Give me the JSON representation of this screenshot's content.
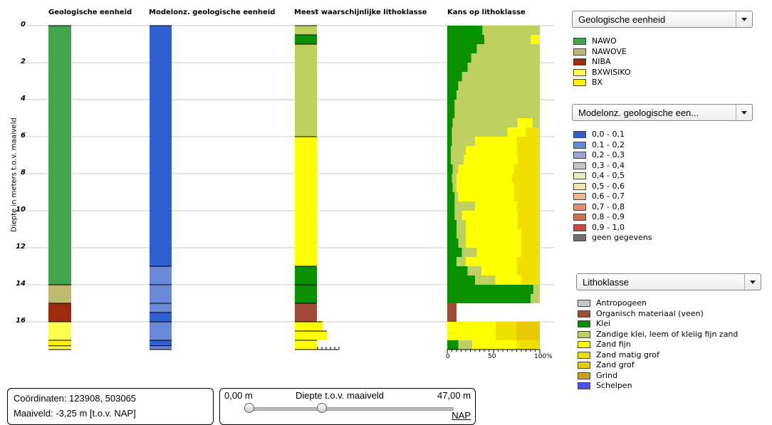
{
  "columns": {
    "geo": "Geologische eenheid",
    "model": "Modelonz. geologische eenheid",
    "litho": "Meest waarschijnlijke lithoklasse",
    "kans": "Kans op lithoklasse"
  },
  "y_axis": {
    "label": "Diepte in meters t.o.v. maaiveld",
    "ticks": [
      "0",
      "2",
      "4",
      "6",
      "8",
      "10",
      "12",
      "14",
      "16"
    ]
  },
  "kans_axis": {
    "ticks": [
      "0",
      "50",
      "100%"
    ]
  },
  "colors": {
    "NAWO": "#41a44e",
    "NAWOVE": "#bdba70",
    "NIBA": "#9d2b0e",
    "BXWISIKO": "#ffff50",
    "BX": "#fff000",
    "m01": "#3060d0",
    "m12": "#6a88d8",
    "m23": "#9aa8d8",
    "m34": "#c4c4cc",
    "m45": "#eeeec0",
    "m56": "#f6e4b0",
    "m67": "#f0b890",
    "m78": "#e09070",
    "m89": "#d07050",
    "m910": "#c84848",
    "mgeen": "#707070",
    "antropogeen": "#c8c8c8",
    "veen": "#a04a3a",
    "klei": "#089000",
    "zandklei": "#c0d060",
    "zandfijn": "#ffff00",
    "zandmatig": "#f0e000",
    "zandgrof": "#e8c800",
    "grind": "#d0a020",
    "schelpen": "#5050f0"
  },
  "geo_legend": {
    "select": "Geologische eenheid",
    "items": [
      {
        "label": "NAWO",
        "color": "#41a44e"
      },
      {
        "label": "NAWOVE",
        "color": "#bdba70"
      },
      {
        "label": "NIBA",
        "color": "#9d2b0e"
      },
      {
        "label": "BXWISIKO",
        "color": "#ffff50"
      },
      {
        "label": "BX",
        "color": "#fff000"
      }
    ]
  },
  "model_legend": {
    "select": "Modelonz. geologische een...",
    "items": [
      {
        "label": "0,0 - 0,1",
        "color": "#3060d0"
      },
      {
        "label": "0,1 - 0,2",
        "color": "#6a88d8"
      },
      {
        "label": "0,2 - 0,3",
        "color": "#9aa8d8"
      },
      {
        "label": "0,3 - 0,4",
        "color": "#c4c4cc"
      },
      {
        "label": "0,4 - 0,5",
        "color": "#eeeec0"
      },
      {
        "label": "0,5 - 0,6",
        "color": "#f6e4b0"
      },
      {
        "label": "0,6 - 0,7",
        "color": "#f0b890"
      },
      {
        "label": "0,7 - 0,8",
        "color": "#e09070"
      },
      {
        "label": "0,8 - 0,9",
        "color": "#d07050"
      },
      {
        "label": "0,9 - 1,0",
        "color": "#c84848"
      },
      {
        "label": "geen gegevens",
        "color": "#707070"
      }
    ]
  },
  "litho_legend": {
    "select": "Lithoklasse",
    "items": [
      {
        "label": "Antropogeen",
        "color": "#c8c8c8"
      },
      {
        "label": "Organisch materiaal (veen)",
        "color": "#a04a3a"
      },
      {
        "label": "Klei",
        "color": "#089000"
      },
      {
        "label": "Zandige klei, leem of kleiig fijn zand",
        "color": "#c0d060"
      },
      {
        "label": "Zand fijn",
        "color": "#ffff00"
      },
      {
        "label": "Zand matig grof",
        "color": "#f0e000"
      },
      {
        "label": "Zand grof",
        "color": "#e8c800"
      },
      {
        "label": "Grind",
        "color": "#d0a020"
      },
      {
        "label": "Schelpen",
        "color": "#5050f0"
      }
    ]
  },
  "geo_column": [
    {
      "from": 0,
      "to": 14.0,
      "unit": "NAWO"
    },
    {
      "from": 14.0,
      "to": 15.0,
      "unit": "NAWOVE"
    },
    {
      "from": 15.0,
      "to": 16.0,
      "unit": "NIBA"
    },
    {
      "from": 16.0,
      "to": 17.0,
      "unit": "BXWISIKO"
    },
    {
      "from": 17.0,
      "to": 17.3,
      "unit": "BX"
    },
    {
      "from": 17.3,
      "to": 17.5,
      "unit": "BXWISIKO"
    }
  ],
  "model_column": [
    {
      "from": 0,
      "to": 13.0,
      "cls": "m01"
    },
    {
      "from": 13.0,
      "to": 14.0,
      "cls": "m12"
    },
    {
      "from": 14.0,
      "to": 15.0,
      "cls": "m12"
    },
    {
      "from": 15.0,
      "to": 15.5,
      "cls": "m12"
    },
    {
      "from": 15.5,
      "to": 16.0,
      "cls": "m01"
    },
    {
      "from": 16.0,
      "to": 17.0,
      "cls": "m12"
    },
    {
      "from": 17.0,
      "to": 17.3,
      "cls": "m01"
    },
    {
      "from": 17.3,
      "to": 17.5,
      "cls": "m12"
    }
  ],
  "litho_column": [
    {
      "from": 0,
      "to": 0.5,
      "cls": "zandklei"
    },
    {
      "from": 0.5,
      "to": 1.0,
      "cls": "klei"
    },
    {
      "from": 1.0,
      "to": 6.0,
      "cls": "zandklei"
    },
    {
      "from": 6.0,
      "to": 13.0,
      "cls": "zandfijn"
    },
    {
      "from": 13.0,
      "to": 14.0,
      "cls": "klei"
    },
    {
      "from": 14.0,
      "to": 15.0,
      "cls": "klei"
    },
    {
      "from": 15.0,
      "to": 16.0,
      "cls": "veen"
    },
    {
      "from": 16.0,
      "to": 16.5,
      "cls": "zandfijn"
    },
    {
      "from": 16.5,
      "to": 17.0,
      "cls": "zandfijn"
    },
    {
      "from": 17.0,
      "to": 17.5,
      "cls": "zandfijn"
    }
  ],
  "kans_rows": [
    {
      "from": 0,
      "to": 0.5,
      "parts": [
        [
          "klei",
          0.38
        ],
        [
          "zandklei",
          0.62
        ]
      ]
    },
    {
      "from": 0.5,
      "to": 1.0,
      "parts": [
        [
          "klei",
          0.4
        ],
        [
          "zandklei",
          0.5
        ],
        [
          "zandfijn",
          0.1
        ]
      ]
    },
    {
      "from": 1.0,
      "to": 1.5,
      "parts": [
        [
          "klei",
          0.32
        ],
        [
          "zandklei",
          0.68
        ]
      ]
    },
    {
      "from": 1.5,
      "to": 2.0,
      "parts": [
        [
          "klei",
          0.26
        ],
        [
          "zandklei",
          0.74
        ]
      ]
    },
    {
      "from": 2.0,
      "to": 2.5,
      "parts": [
        [
          "klei",
          0.22
        ],
        [
          "zandklei",
          0.78
        ]
      ]
    },
    {
      "from": 2.5,
      "to": 3.0,
      "parts": [
        [
          "klei",
          0.16
        ],
        [
          "zandklei",
          0.84
        ]
      ]
    },
    {
      "from": 3.0,
      "to": 3.5,
      "parts": [
        [
          "klei",
          0.12
        ],
        [
          "zandklei",
          0.88
        ]
      ]
    },
    {
      "from": 3.5,
      "to": 4.0,
      "parts": [
        [
          "klei",
          0.1
        ],
        [
          "zandklei",
          0.9
        ]
      ]
    },
    {
      "from": 4.0,
      "to": 4.5,
      "parts": [
        [
          "klei",
          0.08
        ],
        [
          "zandklei",
          0.92
        ]
      ]
    },
    {
      "from": 4.5,
      "to": 5.0,
      "parts": [
        [
          "klei",
          0.08
        ],
        [
          "zandklei",
          0.92
        ]
      ]
    },
    {
      "from": 5.0,
      "to": 5.5,
      "parts": [
        [
          "klei",
          0.06
        ],
        [
          "zandklei",
          0.7
        ],
        [
          "zandfijn",
          0.16
        ],
        [
          "zandklei",
          0.08
        ]
      ]
    },
    {
      "from": 5.5,
      "to": 6.0,
      "parts": [
        [
          "klei",
          0.05
        ],
        [
          "zandklei",
          0.6
        ],
        [
          "zandfijn",
          0.2
        ],
        [
          "zandmatig",
          0.15
        ]
      ]
    },
    {
      "from": 6.0,
      "to": 6.5,
      "parts": [
        [
          "klei",
          0.05
        ],
        [
          "zandklei",
          0.25
        ],
        [
          "zandfijn",
          0.45
        ],
        [
          "zandmatig",
          0.25
        ]
      ]
    },
    {
      "from": 6.5,
      "to": 7.0,
      "parts": [
        [
          "klei",
          0.04
        ],
        [
          "zandklei",
          0.16
        ],
        [
          "zandfijn",
          0.55
        ],
        [
          "zandmatig",
          0.25
        ]
      ]
    },
    {
      "from": 7.0,
      "to": 7.5,
      "parts": [
        [
          "klei",
          0.04
        ],
        [
          "zandklei",
          0.14
        ],
        [
          "zandfijn",
          0.58
        ],
        [
          "zandmatig",
          0.24
        ]
      ]
    },
    {
      "from": 7.5,
      "to": 8.0,
      "parts": [
        [
          "klei",
          0.06
        ],
        [
          "zandklei",
          0.06
        ],
        [
          "zandfijn",
          0.6
        ],
        [
          "zandmatig",
          0.28
        ]
      ]
    },
    {
      "from": 8.0,
      "to": 8.5,
      "parts": [
        [
          "klei",
          0.05
        ],
        [
          "zandklei",
          0.05
        ],
        [
          "zandfijn",
          0.6
        ],
        [
          "zandmatig",
          0.3
        ]
      ]
    },
    {
      "from": 8.5,
      "to": 9.0,
      "parts": [
        [
          "klei",
          0.06
        ],
        [
          "zandklei",
          0.04
        ],
        [
          "zandfijn",
          0.62
        ],
        [
          "zandmatig",
          0.28
        ]
      ]
    },
    {
      "from": 9.0,
      "to": 9.5,
      "parts": [
        [
          "klei",
          0.08
        ],
        [
          "zandklei",
          0.04
        ],
        [
          "zandfijn",
          0.6
        ],
        [
          "zandmatig",
          0.28
        ]
      ]
    },
    {
      "from": 9.5,
      "to": 10.0,
      "parts": [
        [
          "klei",
          0.08
        ],
        [
          "zandklei",
          0.22
        ],
        [
          "zandfijn",
          0.45
        ],
        [
          "zandmatig",
          0.25
        ]
      ]
    },
    {
      "from": 10.0,
      "to": 10.5,
      "parts": [
        [
          "klei",
          0.08
        ],
        [
          "zandklei",
          0.08
        ],
        [
          "zandfijn",
          0.6
        ],
        [
          "zandmatig",
          0.24
        ]
      ]
    },
    {
      "from": 10.5,
      "to": 11.0,
      "parts": [
        [
          "klei",
          0.1
        ],
        [
          "zandklei",
          0.1
        ],
        [
          "zandfijn",
          0.56
        ],
        [
          "zandmatig",
          0.24
        ]
      ]
    },
    {
      "from": 11.0,
      "to": 11.5,
      "parts": [
        [
          "klei",
          0.1
        ],
        [
          "zandklei",
          0.1
        ],
        [
          "zandfijn",
          0.6
        ],
        [
          "zandmatig",
          0.2
        ]
      ]
    },
    {
      "from": 11.5,
      "to": 12.0,
      "parts": [
        [
          "klei",
          0.12
        ],
        [
          "zandklei",
          0.08
        ],
        [
          "zandfijn",
          0.6
        ],
        [
          "zandmatig",
          0.2
        ]
      ]
    },
    {
      "from": 12.0,
      "to": 12.5,
      "parts": [
        [
          "klei",
          0.16
        ],
        [
          "zandklei",
          0.16
        ],
        [
          "zandfijn",
          0.48
        ],
        [
          "zandmatig",
          0.2
        ]
      ]
    },
    {
      "from": 12.5,
      "to": 13.0,
      "parts": [
        [
          "klei",
          0.1
        ],
        [
          "zandklei",
          0.1
        ],
        [
          "zandfijn",
          0.55
        ],
        [
          "zandmatig",
          0.25
        ]
      ]
    },
    {
      "from": 13.0,
      "to": 13.5,
      "parts": [
        [
          "klei",
          0.22
        ],
        [
          "zandklei",
          0.15
        ],
        [
          "zandfijn",
          0.38
        ],
        [
          "zandmatig",
          0.25
        ]
      ]
    },
    {
      "from": 13.5,
      "to": 14.0,
      "parts": [
        [
          "klei",
          0.3
        ],
        [
          "zandklei",
          0.22
        ],
        [
          "zandfijn",
          0.28
        ],
        [
          "zandmatig",
          0.2
        ]
      ]
    },
    {
      "from": 14.0,
      "to": 14.5,
      "parts": [
        [
          "klei",
          0.93
        ],
        [
          "zandklei",
          0.07
        ]
      ]
    },
    {
      "from": 14.5,
      "to": 15.0,
      "parts": [
        [
          "klei",
          0.9
        ],
        [
          "zandklei",
          0.1
        ]
      ]
    },
    {
      "from": 15.0,
      "to": 16.0,
      "parts": [
        [
          "veen",
          0.1
        ]
      ]
    },
    {
      "from": 16.0,
      "to": 17.0,
      "parts": [
        [
          "zandfijn",
          0.52
        ],
        [
          "zandmatig",
          0.23
        ],
        [
          "zandgrof",
          0.25
        ]
      ]
    },
    {
      "from": 17.0,
      "to": 17.5,
      "parts": [
        [
          "klei",
          0.12
        ],
        [
          "zandklei",
          0.15
        ],
        [
          "zandfijn",
          0.48
        ],
        [
          "zandmatig",
          0.25
        ]
      ]
    }
  ],
  "info": {
    "coordinates": "Coördinaten: 123908, 503065",
    "maaiveld": "Maaiveld: -3,25 m [t.o.v. NAP]"
  },
  "depth_slider": {
    "min": "0,00 m",
    "title": "Diepte t.o.v. maaiveld",
    "max": "47,00 m",
    "link": "NAP",
    "low_fraction": 0.0,
    "high_fraction": 0.37
  }
}
